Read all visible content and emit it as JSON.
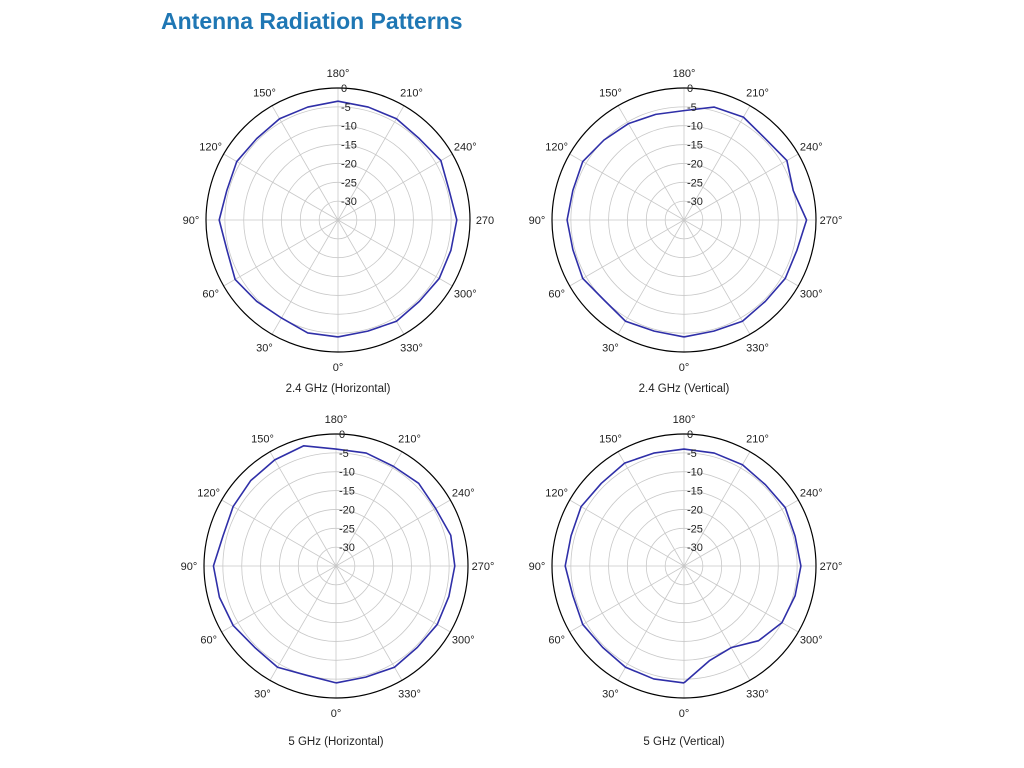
{
  "page": {
    "title": "Antenna Radiation Patterns"
  },
  "colors": {
    "title": "#1f77b4",
    "trace": "#2f2fa8",
    "grid": "#c8c8c8",
    "outer_ring": "#000000"
  },
  "chart_data": [
    {
      "type": "polar-line",
      "caption": "2.4 GHz (Horizontal)",
      "angle_labels": [
        "180°",
        "210°",
        "240°",
        "270",
        "300°",
        "330°",
        "0°",
        "30°",
        "60°",
        "90°",
        "120°",
        "150°"
      ],
      "radial_ticks": [
        "0",
        "-5",
        "-10",
        "-15",
        "-20",
        "-25",
        "-30"
      ],
      "r_range": [
        -35,
        0
      ],
      "theta_zero": "bottom",
      "theta_direction": "counterclockwise",
      "grid": true,
      "series": [
        {
          "theta_deg": [
            0,
            15,
            30,
            45,
            60,
            75,
            90,
            105,
            120,
            135,
            150,
            165,
            180,
            195,
            210,
            225,
            240,
            255,
            270,
            285,
            300,
            315,
            330,
            345,
            360
          ],
          "r_db": [
            -4,
            -4,
            -5,
            -4.5,
            -3.5,
            -4.5,
            -3.5,
            -4.5,
            -4,
            -4.5,
            -4,
            -4,
            -3.5,
            -4,
            -4,
            -4.5,
            -3.5,
            -4.5,
            -3.5,
            -4,
            -4,
            -4.5,
            -4,
            -4.5,
            -4
          ]
        }
      ]
    },
    {
      "type": "polar-line",
      "caption": "2.4 GHz (Vertical)",
      "angle_labels": [
        "180°",
        "210°",
        "240°",
        "270°",
        "300°",
        "330°",
        "0°",
        "30°",
        "60°",
        "90°",
        "120°",
        "150°"
      ],
      "radial_ticks": [
        "0",
        "-5",
        "-10",
        "-15",
        "-20",
        "-25",
        "-30"
      ],
      "r_range": [
        -35,
        0
      ],
      "theta_zero": "bottom",
      "theta_direction": "counterclockwise",
      "grid": true,
      "series": [
        {
          "theta_deg": [
            0,
            15,
            30,
            45,
            60,
            75,
            90,
            105,
            120,
            135,
            150,
            165,
            180,
            195,
            210,
            225,
            240,
            255,
            270,
            285,
            300,
            315,
            330,
            345,
            360
          ],
          "r_db": [
            -4,
            -4.5,
            -4,
            -5,
            -4,
            -4.5,
            -4,
            -4.5,
            -4,
            -5,
            -5.5,
            -6,
            -6,
            -4,
            -3.5,
            -4.5,
            -3.5,
            -5,
            -2.5,
            -4,
            -4,
            -4.5,
            -4,
            -4.5,
            -4
          ]
        }
      ]
    },
    {
      "type": "polar-line",
      "caption": "5 GHz (Horizontal)",
      "angle_labels": [
        "180°",
        "210°",
        "240°",
        "270°",
        "300°",
        "330°",
        "0°",
        "30°",
        "60°",
        "90°",
        "120°",
        "150°"
      ],
      "radial_ticks": [
        "0",
        "-5",
        "-10",
        "-15",
        "-20",
        "-25",
        "-30"
      ],
      "r_range": [
        -35,
        0
      ],
      "theta_zero": "bottom",
      "theta_direction": "counterclockwise",
      "grid": true,
      "series": [
        {
          "theta_deg": [
            0,
            15,
            30,
            45,
            60,
            75,
            90,
            105,
            120,
            135,
            150,
            165,
            180,
            195,
            210,
            225,
            240,
            255,
            270,
            285,
            300,
            315,
            330,
            345,
            360
          ],
          "r_db": [
            -4,
            -5,
            -4,
            -4.5,
            -3.5,
            -3,
            -2.5,
            -4,
            -3.5,
            -3,
            -2.5,
            -2,
            -4,
            -4,
            -4.5,
            -4,
            -4.5,
            -3.5,
            -3.5,
            -4,
            -4,
            -4.5,
            -4,
            -4.5,
            -4
          ]
        }
      ]
    },
    {
      "type": "polar-line",
      "caption": "5 GHz (Vertical)",
      "angle_labels": [
        "180°",
        "210°",
        "240°",
        "270°",
        "300°",
        "330°",
        "0°",
        "30°",
        "60°",
        "90°",
        "120°",
        "150°"
      ],
      "radial_ticks": [
        "0",
        "-5",
        "-10",
        "-15",
        "-20",
        "-25",
        "-30"
      ],
      "r_range": [
        -35,
        0
      ],
      "theta_zero": "bottom",
      "theta_direction": "counterclockwise",
      "grid": true,
      "series": [
        {
          "theta_deg": [
            0,
            15,
            30,
            45,
            60,
            75,
            90,
            105,
            120,
            135,
            150,
            165,
            180,
            195,
            210,
            225,
            240,
            255,
            270,
            285,
            300,
            315,
            330,
            345,
            360
          ],
          "r_db": [
            -4,
            -4,
            -4,
            -4.5,
            -4,
            -4.5,
            -3.5,
            -4,
            -3.5,
            -4,
            -3.5,
            -4,
            -4,
            -4,
            -4,
            -4.5,
            -4,
            -4.5,
            -4,
            -4.5,
            -5,
            -7,
            -10,
            -9,
            -4
          ]
        }
      ]
    }
  ]
}
